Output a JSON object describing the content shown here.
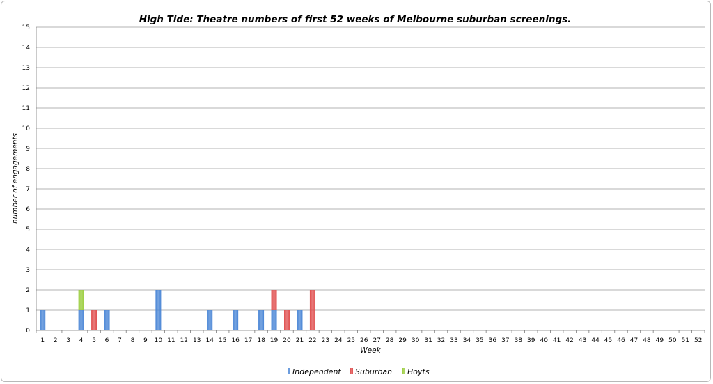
{
  "chart_data": {
    "type": "bar",
    "stacked": true,
    "title": "High Tide: Theatre numbers of first 52 weeks of Melbourne suburban screenings.",
    "xlabel": "Week",
    "ylabel": "number of engagements",
    "ylim": [
      0,
      15
    ],
    "yticks": [
      "0",
      "1",
      "2",
      "3",
      "4",
      "5",
      "6",
      "7",
      "8",
      "9",
      "10",
      "11",
      "12",
      "13",
      "14",
      "15"
    ],
    "grid": true,
    "legend_position": "bottom",
    "categories": [
      "1",
      "2",
      "3",
      "4",
      "5",
      "6",
      "7",
      "8",
      "9",
      "10",
      "11",
      "12",
      "13",
      "14",
      "15",
      "16",
      "17",
      "18",
      "19",
      "20",
      "21",
      "22",
      "23",
      "24",
      "25",
      "26",
      "27",
      "28",
      "29",
      "30",
      "31",
      "32",
      "33",
      "34",
      "35",
      "36",
      "37",
      "38",
      "39",
      "40",
      "41",
      "42",
      "43",
      "44",
      "45",
      "46",
      "47",
      "48",
      "49",
      "50",
      "51",
      "52"
    ],
    "series": [
      {
        "name": "Independent",
        "color": "#4a86d6",
        "values": [
          1,
          0,
          0,
          1,
          0,
          1,
          0,
          0,
          0,
          2,
          0,
          0,
          0,
          1,
          0,
          1,
          0,
          1,
          1,
          0,
          1,
          0,
          0,
          0,
          0,
          0,
          0,
          0,
          0,
          0,
          0,
          0,
          0,
          0,
          0,
          0,
          0,
          0,
          0,
          0,
          0,
          0,
          0,
          0,
          0,
          0,
          0,
          0,
          0,
          0,
          0,
          0
        ]
      },
      {
        "name": "Suburban",
        "color": "#e05050",
        "values": [
          0,
          0,
          0,
          0,
          1,
          0,
          0,
          0,
          0,
          0,
          0,
          0,
          0,
          0,
          0,
          0,
          0,
          0,
          1,
          1,
          0,
          2,
          0,
          0,
          0,
          0,
          0,
          0,
          0,
          0,
          0,
          0,
          0,
          0,
          0,
          0,
          0,
          0,
          0,
          0,
          0,
          0,
          0,
          0,
          0,
          0,
          0,
          0,
          0,
          0,
          0,
          0
        ]
      },
      {
        "name": "Hoyts",
        "color": "#9acd3c",
        "values": [
          0,
          0,
          0,
          1,
          0,
          0,
          0,
          0,
          0,
          0,
          0,
          0,
          0,
          0,
          0,
          0,
          0,
          0,
          0,
          0,
          0,
          0,
          0,
          0,
          0,
          0,
          0,
          0,
          0,
          0,
          0,
          0,
          0,
          0,
          0,
          0,
          0,
          0,
          0,
          0,
          0,
          0,
          0,
          0,
          0,
          0,
          0,
          0,
          0,
          0,
          0,
          0
        ]
      }
    ]
  }
}
